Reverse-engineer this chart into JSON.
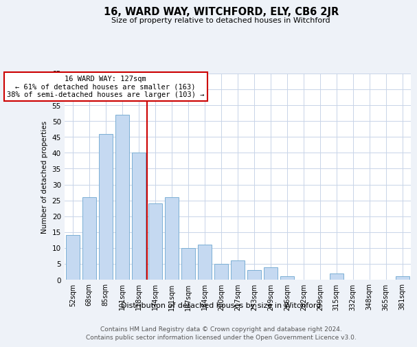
{
  "title": "16, WARD WAY, WITCHFORD, ELY, CB6 2JR",
  "subtitle": "Size of property relative to detached houses in Witchford",
  "xlabel": "Distribution of detached houses by size in Witchford",
  "ylabel": "Number of detached properties",
  "bin_labels": [
    "52sqm",
    "68sqm",
    "85sqm",
    "101sqm",
    "118sqm",
    "134sqm",
    "151sqm",
    "167sqm",
    "184sqm",
    "200sqm",
    "217sqm",
    "233sqm",
    "249sqm",
    "266sqm",
    "282sqm",
    "299sqm",
    "315sqm",
    "332sqm",
    "348sqm",
    "365sqm",
    "381sqm"
  ],
  "bar_values": [
    14,
    26,
    46,
    52,
    40,
    24,
    26,
    10,
    11,
    5,
    6,
    3,
    4,
    1,
    0,
    0,
    2,
    0,
    0,
    0,
    1
  ],
  "bar_color": "#c5d9f1",
  "bar_edge_color": "#7bafd4",
  "reference_line_x": 4.5,
  "annotation_title": "16 WARD WAY: 127sqm",
  "annotation_line1": "← 61% of detached houses are smaller (163)",
  "annotation_line2": "38% of semi-detached houses are larger (103) →",
  "annotation_box_color": "#ffffff",
  "annotation_box_edge": "#cc0000",
  "reference_line_color": "#cc0000",
  "ylim": [
    0,
    65
  ],
  "yticks": [
    0,
    5,
    10,
    15,
    20,
    25,
    30,
    35,
    40,
    45,
    50,
    55,
    60,
    65
  ],
  "footer_line1": "Contains HM Land Registry data © Crown copyright and database right 2024.",
  "footer_line2": "Contains public sector information licensed under the Open Government Licence v3.0.",
  "bg_color": "#eef2f8",
  "plot_bg_color": "#ffffff",
  "grid_color": "#c8d4e8"
}
